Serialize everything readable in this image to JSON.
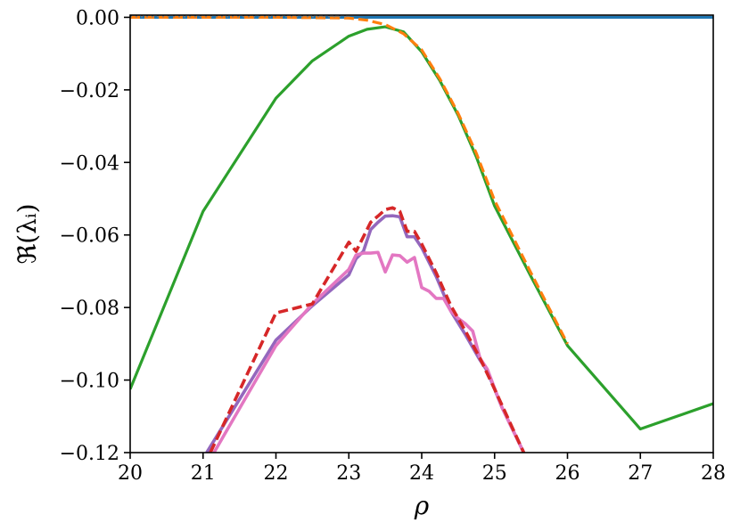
{
  "chart_data": {
    "type": "line",
    "title": "",
    "xlabel": "ρ",
    "ylabel": "ℜ(λᵢ)",
    "xlim": [
      20,
      28
    ],
    "ylim": [
      -0.12,
      0.001
    ],
    "grid": false,
    "legend": "none",
    "x_ticks": [
      20,
      21,
      22,
      23,
      24,
      25,
      26,
      27,
      28
    ],
    "x_tick_labels": [
      "20",
      "21",
      "22",
      "23",
      "24",
      "25",
      "26",
      "27",
      "28"
    ],
    "y_ticks": [
      0,
      -0.02,
      -0.04,
      -0.06,
      -0.08,
      -0.1,
      -0.12
    ],
    "y_tick_labels": [
      "0.00",
      "−0.02",
      "−0.04",
      "−0.06",
      "−0.08",
      "−0.10",
      "−0.12"
    ],
    "series": [
      {
        "color": "#1f77b4",
        "style": "solid",
        "width": 3.2,
        "x": [
          20,
          28
        ],
        "y": [
          0.0,
          0.0
        ]
      },
      {
        "color": "#2ca02c",
        "style": "solid",
        "width": 3.2,
        "x": [
          20,
          21,
          22,
          22.5,
          23,
          23.25,
          23.5,
          23.75,
          24,
          24.25,
          24.5,
          24.75,
          25,
          25.5,
          26,
          27,
          28
        ],
        "y": [
          -0.1025,
          -0.0535,
          -0.0223,
          -0.012,
          -0.0052,
          -0.0033,
          -0.0026,
          -0.004,
          -0.0095,
          -0.0175,
          -0.027,
          -0.0385,
          -0.052,
          -0.0715,
          -0.0905,
          -0.1135,
          -0.1065
        ]
      },
      {
        "color": "#ff7f0e",
        "style": "dashed",
        "width": 3.2,
        "x": [
          20,
          22,
          23,
          23.25,
          23.5,
          23.75,
          24,
          24.25,
          24.5,
          24.75,
          25,
          25.5,
          26
        ],
        "y": [
          0.0,
          0.0,
          -0.0002,
          -0.0008,
          -0.002,
          -0.0045,
          -0.009,
          -0.017,
          -0.0265,
          -0.0375,
          -0.0505,
          -0.0705,
          -0.09
        ]
      },
      {
        "color": "#9467bd",
        "style": "solid",
        "width": 3.6,
        "x": [
          21.05,
          22,
          22.5,
          23,
          23.1,
          23.2,
          23.3,
          23.4,
          23.5,
          23.6,
          23.7,
          23.8,
          23.9,
          24,
          24.2,
          24.4,
          24.6,
          24.8,
          24.9,
          25.1,
          25.4
        ],
        "y": [
          -0.12,
          -0.089,
          -0.0795,
          -0.071,
          -0.0665,
          -0.0645,
          -0.0585,
          -0.0565,
          -0.0548,
          -0.0547,
          -0.055,
          -0.0605,
          -0.0605,
          -0.0635,
          -0.0715,
          -0.081,
          -0.0875,
          -0.0945,
          -0.0975,
          -0.1075,
          -0.12
        ]
      },
      {
        "color": "#e377c2",
        "style": "solid",
        "width": 3.6,
        "x": [
          21.15,
          22,
          22.5,
          23,
          23.1,
          23.2,
          23.3,
          23.4,
          23.5,
          23.6,
          23.7,
          23.8,
          23.9,
          24,
          24.1,
          24.2,
          24.3,
          24.4,
          24.5,
          24.6,
          24.7,
          24.8,
          24.9,
          25.1,
          25.4
        ],
        "y": [
          -0.12,
          -0.0905,
          -0.079,
          -0.0695,
          -0.0655,
          -0.065,
          -0.065,
          -0.0648,
          -0.0702,
          -0.0655,
          -0.0657,
          -0.0675,
          -0.0662,
          -0.0745,
          -0.0755,
          -0.0775,
          -0.0775,
          -0.081,
          -0.083,
          -0.0845,
          -0.0865,
          -0.094,
          -0.097,
          -0.1075,
          -0.12
        ]
      },
      {
        "color": "#d62728",
        "style": "dashed",
        "width": 3.6,
        "x": [
          21.1,
          22,
          22.5,
          23,
          23.1,
          23.2,
          23.3,
          23.4,
          23.5,
          23.6,
          23.7,
          23.8,
          23.9,
          24,
          24.2,
          24.4,
          24.6,
          24.8,
          25,
          25.4
        ],
        "y": [
          -0.12,
          -0.0815,
          -0.079,
          -0.062,
          -0.0645,
          -0.0605,
          -0.0565,
          -0.0548,
          -0.053,
          -0.0525,
          -0.0535,
          -0.059,
          -0.059,
          -0.0625,
          -0.0705,
          -0.0795,
          -0.0865,
          -0.094,
          -0.1025,
          -0.12
        ]
      }
    ]
  }
}
